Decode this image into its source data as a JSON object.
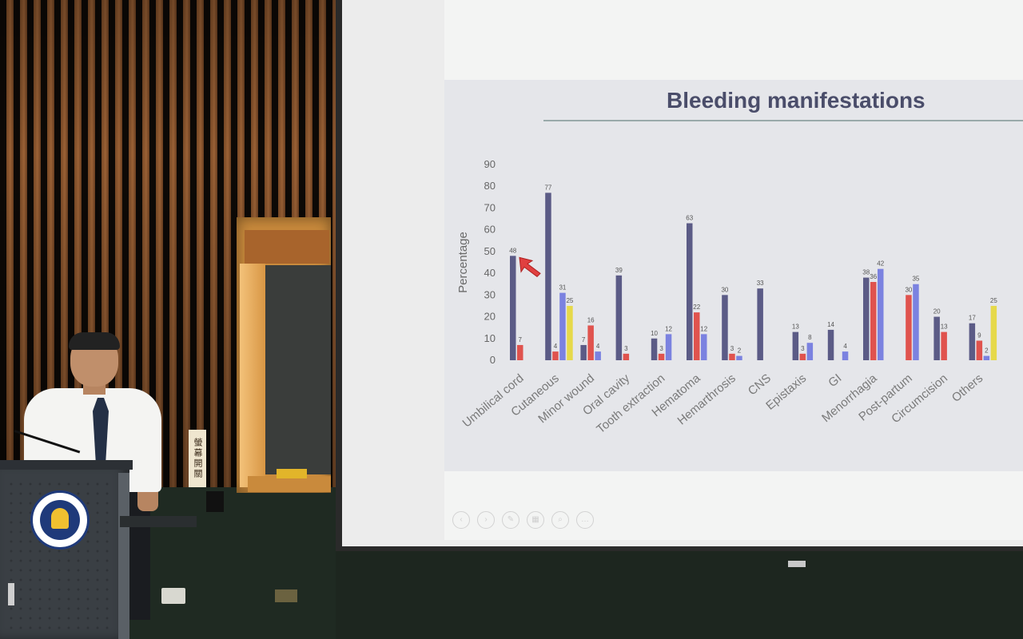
{
  "slide": {
    "title": "Bleeding manifestations"
  },
  "signage": {
    "vertical_sign": "螢幕開關"
  },
  "colors": {
    "series_purple": "#5b5b86",
    "series_red": "#e0534e",
    "series_blue": "#7b82e0",
    "series_yellow": "#e6d94a"
  },
  "icons": [
    "nav-back-icon",
    "nav-forward-icon",
    "pen-icon",
    "slides-icon",
    "zoom-icon",
    "more-icon"
  ],
  "chart_data": {
    "type": "bar",
    "title": "Bleeding manifestations",
    "ylabel": "Percentage",
    "xlabel": "",
    "ylim": [
      0,
      90
    ],
    "yticks": [
      0,
      10,
      20,
      30,
      40,
      50,
      60,
      70,
      80,
      90
    ],
    "categories": [
      "Umbilical cord",
      "Cutaneous",
      "Minor wound",
      "Oral cavity",
      "Tooth extraction",
      "Hematoma",
      "Hemarthrosis",
      "CNS",
      "Epistaxis",
      "GI",
      "Menorrhagia",
      "Post-partum",
      "Circumcision",
      "Others"
    ],
    "series": [
      {
        "color": "#5b5b86",
        "values": [
          48,
          77,
          7,
          39,
          10,
          63,
          30,
          33,
          13,
          14,
          38,
          null,
          20,
          17
        ]
      },
      {
        "color": "#e0534e",
        "values": [
          7,
          4,
          16,
          3,
          3,
          22,
          3,
          null,
          3,
          null,
          36,
          30,
          13,
          9
        ]
      },
      {
        "color": "#7b82e0",
        "values": [
          null,
          31,
          4,
          null,
          12,
          12,
          2,
          null,
          8,
          4,
          42,
          35,
          null,
          2
        ]
      },
      {
        "color": "#e6d94a",
        "values": [
          null,
          25,
          null,
          null,
          null,
          null,
          null,
          null,
          null,
          null,
          null,
          null,
          null,
          25
        ]
      }
    ],
    "grid": false,
    "legend": "none",
    "annotations": [
      "red arrow pointing at Umbilical cord value"
    ]
  }
}
